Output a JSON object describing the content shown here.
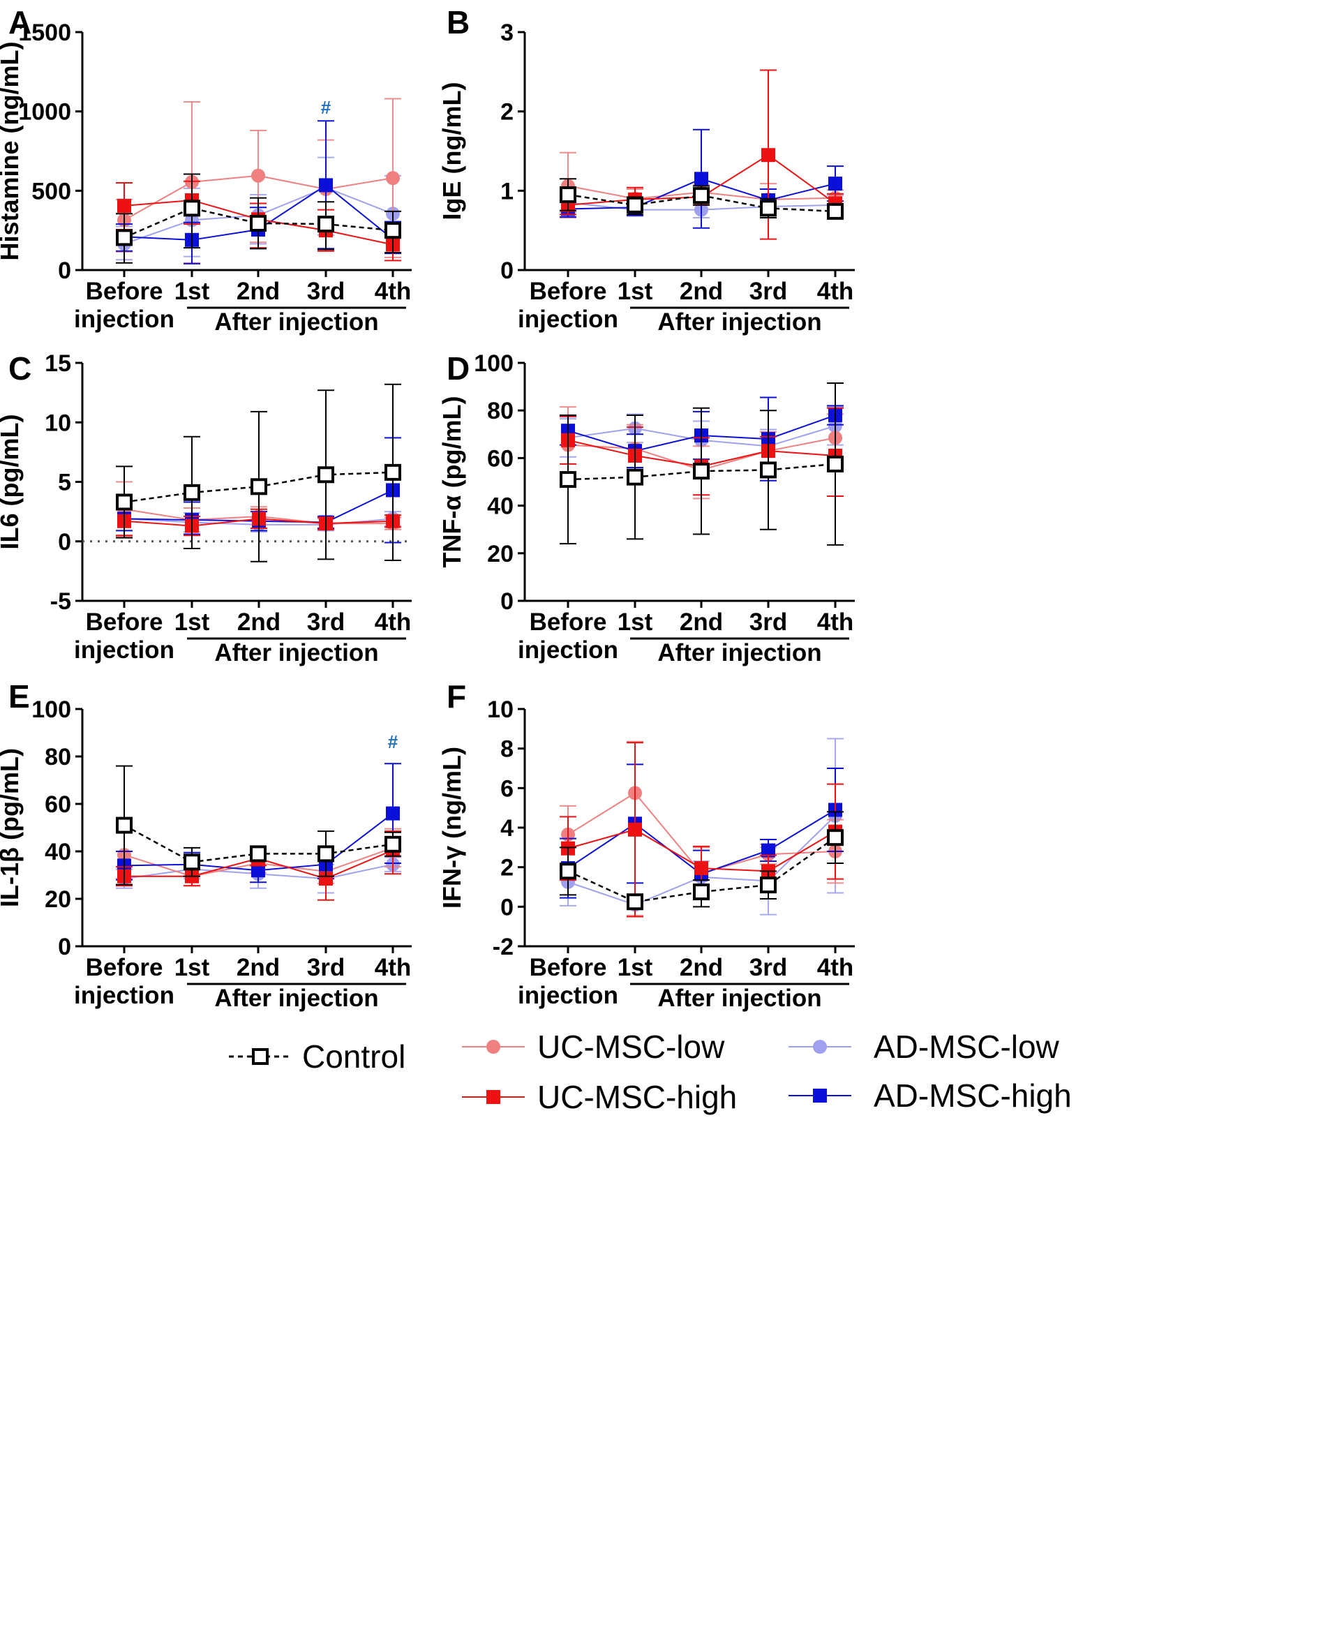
{
  "colors": {
    "Control": "#000000",
    "UC-MSC-low": "#f08080",
    "UC-MSC-high": "#ee1111",
    "AD-MSC-low": "#a0a0f0",
    "AD-MSC-high": "#0a10d8",
    "hash": "#1f6fc4"
  },
  "legend": [
    "Control",
    "UC-MSC-low",
    "AD-MSC-low",
    "UC-MSC-high",
    "AD-MSC-high"
  ],
  "chart_data": [
    {
      "panel": "A",
      "type": "line",
      "ylabel": "Histamine (ng/mL)",
      "ylim": [
        0,
        1500
      ],
      "yticks": [
        0,
        500,
        1000,
        1500
      ],
      "ytick_labels": [
        "0",
        "500",
        "1000",
        "1500"
      ],
      "categories": [
        "Before injection",
        "1st",
        "2nd",
        "3rd",
        "4th"
      ],
      "group_label": "After injection",
      "annotations": [
        {
          "text": "#",
          "category": "3rd",
          "y": 1030
        }
      ],
      "series": [
        {
          "name": "Control",
          "values": [
            205,
            390,
            295,
            290,
            250
          ],
          "err_up": [
            150,
            215,
            160,
            140,
            120
          ],
          "err_down": [
            160,
            250,
            160,
            160,
            140
          ]
        },
        {
          "name": "UC-MSC-low",
          "values": [
            315,
            555,
            595,
            510,
            580
          ],
          "err_up": [
            130,
            505,
            285,
            310,
            500
          ],
          "err_down": [
            200,
            510,
            420,
            380,
            500
          ]
        },
        {
          "name": "AD-MSC-low",
          "values": [
            165,
            315,
            345,
            520,
            355
          ],
          "err_up": [
            110,
            200,
            130,
            190,
            240
          ],
          "err_down": [
            100,
            230,
            180,
            300,
            250
          ]
        },
        {
          "name": "UC-MSC-high",
          "values": [
            405,
            440,
            320,
            250,
            160
          ],
          "err_up": [
            145,
            120,
            100,
            130,
            110
          ],
          "err_down": [
            150,
            150,
            180,
            130,
            100
          ]
        },
        {
          "name": "AD-MSC-high",
          "values": [
            210,
            190,
            255,
            535,
            195
          ],
          "err_up": [
            80,
            110,
            140,
            405,
            110
          ],
          "err_down": [
            90,
            150,
            120,
            400,
            90
          ]
        }
      ]
    },
    {
      "panel": "B",
      "type": "line",
      "ylabel": "IgE (ng/mL)",
      "ylim": [
        0,
        3
      ],
      "yticks": [
        0,
        1,
        2,
        3
      ],
      "ytick_labels": [
        "0",
        "1",
        "2",
        "3"
      ],
      "categories": [
        "Before injection",
        "1st",
        "2nd",
        "3rd",
        "4th"
      ],
      "group_label": "After injection",
      "annotations": [],
      "series": [
        {
          "name": "Control",
          "values": [
            0.95,
            0.82,
            0.94,
            0.78,
            0.74
          ],
          "err_up": [
            0.2,
            0.1,
            0.12,
            0.12,
            0.08
          ],
          "err_down": [
            0.2,
            0.12,
            0.12,
            0.12,
            0.08
          ]
        },
        {
          "name": "UC-MSC-low",
          "values": [
            1.06,
            0.9,
            0.98,
            0.89,
            0.91
          ],
          "err_up": [
            0.42,
            0.12,
            0.1,
            0.2,
            0.1
          ],
          "err_down": [
            0.4,
            0.12,
            0.12,
            0.2,
            0.12
          ]
        },
        {
          "name": "AD-MSC-low",
          "values": [
            0.85,
            0.76,
            0.76,
            0.8,
            0.82
          ],
          "err_up": [
            0.12,
            0.08,
            0.1,
            0.1,
            0.12
          ],
          "err_down": [
            0.12,
            0.08,
            0.1,
            0.1,
            0.1
          ]
        },
        {
          "name": "UC-MSC-high",
          "values": [
            0.82,
            0.89,
            0.92,
            1.45,
            0.84
          ],
          "err_up": [
            0.12,
            0.15,
            0.1,
            1.07,
            0.12
          ],
          "err_down": [
            0.12,
            0.12,
            0.1,
            1.06,
            0.12
          ]
        },
        {
          "name": "AD-MSC-high",
          "values": [
            0.77,
            0.79,
            1.15,
            0.88,
            1.09
          ],
          "err_up": [
            0.1,
            0.1,
            0.62,
            0.14,
            0.22
          ],
          "err_down": [
            0.1,
            0.1,
            0.62,
            0.14,
            0.22
          ]
        }
      ]
    },
    {
      "panel": "C",
      "type": "line",
      "ylabel": "IL6 (pg/mL)",
      "ylim": [
        -5,
        15
      ],
      "yticks": [
        -5,
        0,
        5,
        10,
        15
      ],
      "ytick_labels": [
        "-5",
        "0",
        "5",
        "10",
        "15"
      ],
      "zero_line": true,
      "categories": [
        "Before injection",
        "1st",
        "2nd",
        "3rd",
        "4th"
      ],
      "group_label": "After injection",
      "annotations": [],
      "series": [
        {
          "name": "Control",
          "values": [
            3.3,
            4.1,
            4.6,
            5.6,
            5.8
          ],
          "err_up": [
            3.0,
            4.7,
            6.3,
            7.1,
            7.4
          ],
          "err_down": [
            3.0,
            4.7,
            6.3,
            7.1,
            7.4
          ]
        },
        {
          "name": "UC-MSC-low",
          "values": [
            2.7,
            1.8,
            2.1,
            1.5,
            1.5
          ],
          "err_up": [
            2.3,
            1.0,
            0.8,
            0.5,
            0.5
          ],
          "err_down": [
            2.3,
            1.2,
            1.0,
            0.5,
            0.5
          ]
        },
        {
          "name": "AD-MSC-low",
          "values": [
            1.9,
            1.6,
            1.4,
            1.4,
            1.9
          ],
          "err_up": [
            1.0,
            0.8,
            0.6,
            0.5,
            0.6
          ],
          "err_down": [
            1.0,
            0.8,
            0.6,
            0.5,
            0.6
          ]
        },
        {
          "name": "UC-MSC-high",
          "values": [
            1.7,
            1.3,
            1.9,
            1.5,
            1.7
          ],
          "err_up": [
            1.0,
            0.8,
            0.8,
            0.5,
            0.5
          ],
          "err_down": [
            1.2,
            0.8,
            0.8,
            0.5,
            0.5
          ]
        },
        {
          "name": "AD-MSC-high",
          "values": [
            1.9,
            1.8,
            1.7,
            1.6,
            4.3
          ],
          "err_up": [
            1.0,
            1.5,
            0.8,
            0.5,
            4.4
          ],
          "err_down": [
            1.0,
            1.2,
            0.8,
            0.5,
            4.4
          ]
        }
      ]
    },
    {
      "panel": "D",
      "type": "line",
      "ylabel": "TNF-α (pg/mL)",
      "ylim": [
        0,
        100
      ],
      "yticks": [
        0,
        20,
        40,
        60,
        80,
        100
      ],
      "ytick_labels": [
        "0",
        "20",
        "40",
        "60",
        "80",
        "100"
      ],
      "categories": [
        "Before injection",
        "1st",
        "2nd",
        "3rd",
        "4th"
      ],
      "group_label": "After injection",
      "annotations": [],
      "series": [
        {
          "name": "Control",
          "values": [
            51,
            52,
            54.5,
            55,
            57.5
          ],
          "err_up": [
            27,
            26,
            26.5,
            25,
            34
          ],
          "err_down": [
            27,
            26,
            26.5,
            25,
            34
          ]
        },
        {
          "name": "UC-MSC-low",
          "values": [
            65.5,
            64,
            55,
            63,
            68.5
          ],
          "err_up": [
            16,
            10,
            10,
            8,
            10
          ],
          "err_down": [
            16,
            10,
            12,
            8,
            10
          ]
        },
        {
          "name": "AD-MSC-low",
          "values": [
            68.5,
            72.5,
            67.5,
            65,
            73.5
          ],
          "err_up": [
            8,
            6,
            8,
            7,
            8
          ],
          "err_down": [
            8,
            6,
            8,
            7,
            8
          ]
        },
        {
          "name": "UC-MSC-high",
          "values": [
            67.5,
            61,
            56.5,
            63,
            61
          ],
          "err_up": [
            10,
            12,
            12,
            6,
            20
          ],
          "err_down": [
            10,
            12,
            12,
            6,
            17
          ]
        },
        {
          "name": "AD-MSC-high",
          "values": [
            71.5,
            63,
            69.5,
            68,
            78
          ],
          "err_up": [
            6,
            7,
            10,
            17.5,
            4
          ],
          "err_down": [
            6,
            7,
            10,
            17.5,
            4
          ]
        }
      ]
    },
    {
      "panel": "E",
      "type": "line",
      "ylabel": "IL-1β (pg/mL)",
      "ylim": [
        0,
        100
      ],
      "yticks": [
        0,
        20,
        40,
        60,
        80,
        100
      ],
      "ytick_labels": [
        "0",
        "20",
        "40",
        "60",
        "80",
        "100"
      ],
      "categories": [
        "Before injection",
        "1st",
        "2nd",
        "3rd",
        "4th"
      ],
      "group_label": "After injection",
      "annotations": [
        {
          "text": "#",
          "category": "4th",
          "y": 86.5
        }
      ],
      "series": [
        {
          "name": "Control",
          "values": [
            51,
            35.5,
            39,
            39,
            43
          ],
          "err_up": [
            25,
            6,
            1.5,
            9.5,
            5
          ],
          "err_down": [
            25,
            6,
            1.5,
            9.5,
            5
          ]
        },
        {
          "name": "UC-MSC-low",
          "values": [
            38.5,
            29.5,
            35,
            31.5,
            41.5
          ],
          "err_up": [
            10,
            6,
            4,
            5,
            8
          ],
          "err_down": [
            10,
            4,
            4,
            5,
            8
          ]
        },
        {
          "name": "AD-MSC-low",
          "values": [
            28.5,
            32.5,
            30.5,
            28.5,
            34.5
          ],
          "err_up": [
            4,
            4,
            4,
            6,
            3
          ],
          "err_down": [
            4,
            4,
            6,
            6,
            3
          ]
        },
        {
          "name": "UC-MSC-high",
          "values": [
            29.5,
            29.5,
            37,
            28.5,
            40.5
          ],
          "err_up": [
            4,
            4,
            3,
            9,
            8
          ],
          "err_down": [
            4,
            4,
            3,
            9,
            10
          ]
        },
        {
          "name": "AD-MSC-high",
          "values": [
            34,
            34.5,
            32,
            34.5,
            56
          ],
          "err_up": [
            6,
            5,
            5,
            6,
            21
          ],
          "err_down": [
            6,
            5,
            5,
            6,
            21
          ]
        }
      ]
    },
    {
      "panel": "F",
      "type": "line",
      "ylabel": "IFN-γ (ng/mL)",
      "ylim": [
        -2,
        10
      ],
      "yticks": [
        -2,
        0,
        2,
        4,
        6,
        8,
        10
      ],
      "ytick_labels": [
        "-2",
        "0",
        "2",
        "4",
        "6",
        "8",
        "10"
      ],
      "categories": [
        "Before injection",
        "1st",
        "2nd",
        "3rd",
        "4th"
      ],
      "group_label": "After injection",
      "annotations": [],
      "series": [
        {
          "name": "Control",
          "values": [
            1.8,
            0.25,
            0.75,
            1.1,
            3.5
          ],
          "err_up": [
            1.2,
            0.3,
            0.6,
            0.7,
            1.3
          ],
          "err_down": [
            1.2,
            0.3,
            0.75,
            0.7,
            1.3
          ]
        },
        {
          "name": "UC-MSC-low",
          "values": [
            3.65,
            5.75,
            1.7,
            2.65,
            2.8
          ],
          "err_up": [
            1.45,
            2.6,
            1.3,
            0.5,
            1.6
          ],
          "err_down": [
            1.45,
            6.2,
            1.3,
            0.5,
            1.6
          ]
        },
        {
          "name": "AD-MSC-low",
          "values": [
            1.25,
            0.1,
            1.5,
            1.3,
            4.6
          ],
          "err_up": [
            0.8,
            0.2,
            0.8,
            1.7,
            3.9
          ],
          "err_down": [
            1.2,
            0.2,
            0.8,
            1.7,
            3.9
          ]
        },
        {
          "name": "UC-MSC-high",
          "values": [
            2.95,
            3.9,
            1.95,
            1.8,
            3.8
          ],
          "err_up": [
            1.6,
            4.4,
            1.1,
            0.8,
            2.4
          ],
          "err_down": [
            1.6,
            4.4,
            1.1,
            0.8,
            2.4
          ]
        },
        {
          "name": "AD-MSC-high",
          "values": [
            1.95,
            4.2,
            1.65,
            2.85,
            4.9
          ],
          "err_up": [
            1.5,
            3.0,
            1.2,
            0.55,
            2.1
          ],
          "err_down": [
            1.5,
            3.0,
            1.2,
            0.55,
            2.1
          ]
        }
      ]
    }
  ]
}
